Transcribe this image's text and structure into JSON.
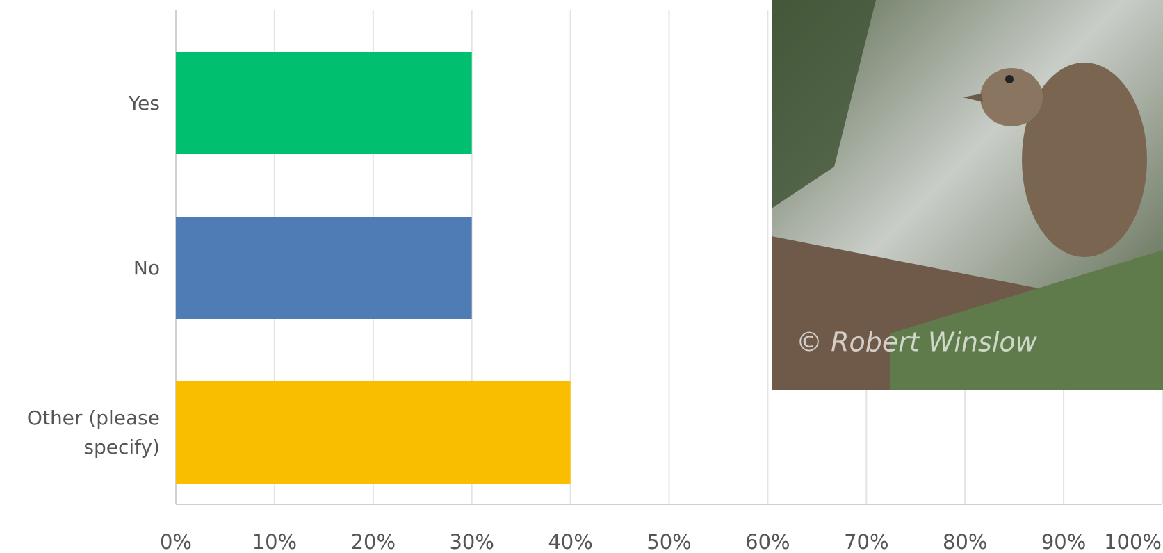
{
  "chart_data": {
    "type": "bar",
    "orientation": "horizontal",
    "categories": [
      "Yes",
      "No",
      "Other (please specify)"
    ],
    "values": [
      30,
      30,
      40
    ],
    "colors": [
      "#00bf6f",
      "#507cb6",
      "#f9be00"
    ],
    "xlim": [
      0,
      100
    ],
    "xticks": [
      {
        "value": 0,
        "label": "0%"
      },
      {
        "value": 10,
        "label": "10%"
      },
      {
        "value": 20,
        "label": "20%"
      },
      {
        "value": 30,
        "label": "30%"
      },
      {
        "value": 40,
        "label": "40%"
      },
      {
        "value": 50,
        "label": "50%"
      },
      {
        "value": 60,
        "label": "60%"
      },
      {
        "value": 70,
        "label": "70%"
      },
      {
        "value": 80,
        "label": "80%"
      },
      {
        "value": 90,
        "label": "90%"
      },
      {
        "value": 100,
        "label": "100%"
      }
    ],
    "grid": true
  },
  "photo_credit": "© Robert Winslow"
}
